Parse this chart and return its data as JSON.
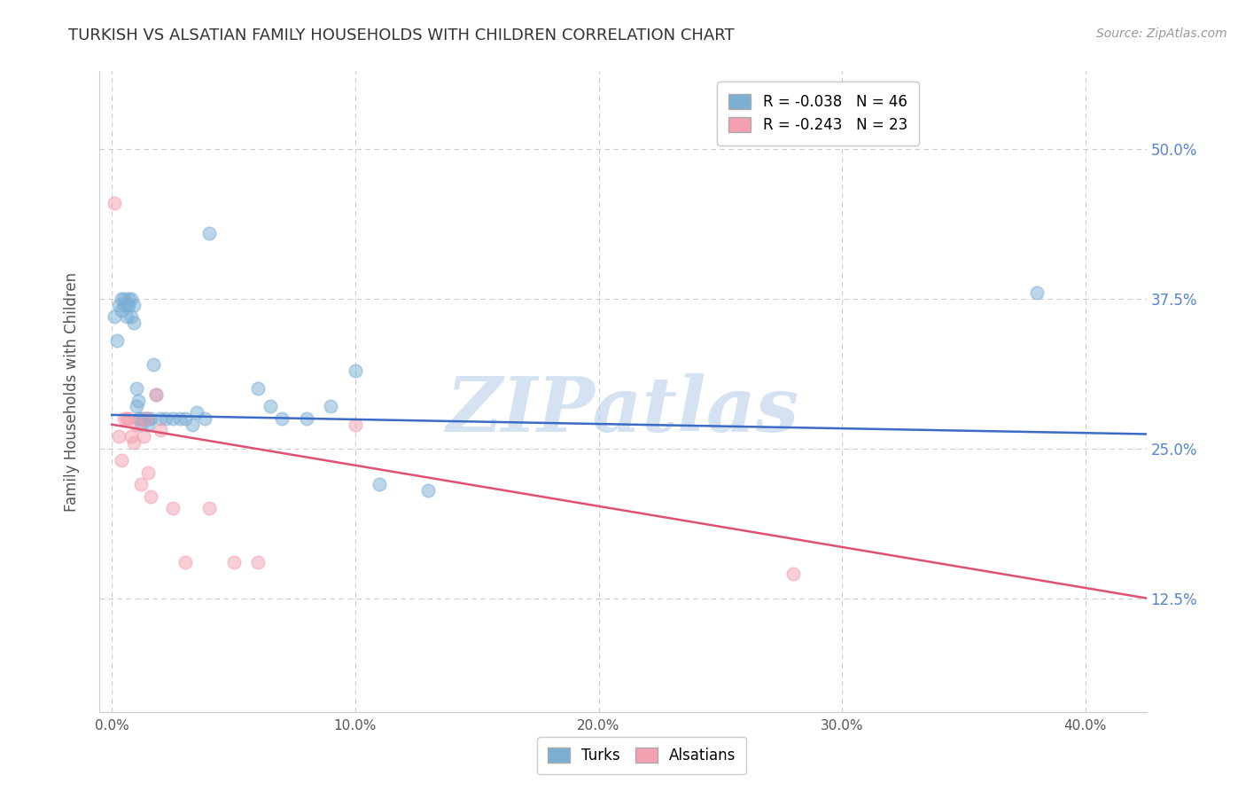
{
  "title": "TURKISH VS ALSATIAN FAMILY HOUSEHOLDS WITH CHILDREN CORRELATION CHART",
  "source": "Source: ZipAtlas.com",
  "ylabel": "Family Households with Children",
  "x_tick_labels": [
    "0.0%",
    "10.0%",
    "20.0%",
    "30.0%",
    "40.0%"
  ],
  "y_tick_labels": [
    "50.0%",
    "37.5%",
    "25.0%",
    "12.5%"
  ],
  "y_tick_values": [
    0.5,
    0.375,
    0.25,
    0.125
  ],
  "x_tick_values": [
    0.0,
    0.1,
    0.2,
    0.3,
    0.4
  ],
  "xlim": [
    -0.005,
    0.425
  ],
  "ylim": [
    0.03,
    0.565
  ],
  "legend_turks": "R = -0.038   N = 46",
  "legend_alsatians": "R = -0.243   N = 23",
  "turks_color": "#7bafd4",
  "alsatians_color": "#f4a0b0",
  "turks_line_color": "#3a6cc6",
  "alsatians_line_color": "#e05070",
  "turks_scatter_x": [
    0.001,
    0.002,
    0.003,
    0.004,
    0.004,
    0.005,
    0.005,
    0.006,
    0.006,
    0.007,
    0.007,
    0.008,
    0.008,
    0.009,
    0.009,
    0.01,
    0.01,
    0.011,
    0.011,
    0.012,
    0.012,
    0.013,
    0.014,
    0.015,
    0.015,
    0.016,
    0.017,
    0.018,
    0.02,
    0.022,
    0.025,
    0.028,
    0.03,
    0.033,
    0.035,
    0.038,
    0.04,
    0.06,
    0.065,
    0.07,
    0.08,
    0.09,
    0.1,
    0.11,
    0.13,
    0.38
  ],
  "turks_scatter_y": [
    0.36,
    0.34,
    0.37,
    0.375,
    0.365,
    0.375,
    0.37,
    0.37,
    0.36,
    0.375,
    0.37,
    0.375,
    0.36,
    0.37,
    0.355,
    0.3,
    0.285,
    0.29,
    0.275,
    0.275,
    0.27,
    0.275,
    0.275,
    0.275,
    0.27,
    0.275,
    0.32,
    0.295,
    0.275,
    0.275,
    0.275,
    0.275,
    0.275,
    0.27,
    0.28,
    0.275,
    0.43,
    0.3,
    0.285,
    0.275,
    0.275,
    0.285,
    0.315,
    0.22,
    0.215,
    0.38
  ],
  "alsatians_scatter_x": [
    0.001,
    0.003,
    0.004,
    0.005,
    0.006,
    0.007,
    0.008,
    0.009,
    0.01,
    0.012,
    0.013,
    0.014,
    0.015,
    0.016,
    0.018,
    0.02,
    0.025,
    0.03,
    0.04,
    0.05,
    0.06,
    0.28,
    0.1
  ],
  "alsatians_scatter_y": [
    0.455,
    0.26,
    0.24,
    0.275,
    0.275,
    0.275,
    0.26,
    0.255,
    0.27,
    0.22,
    0.26,
    0.275,
    0.23,
    0.21,
    0.295,
    0.265,
    0.2,
    0.155,
    0.2,
    0.155,
    0.155,
    0.145,
    0.27
  ],
  "turks_trend_x": [
    0.0,
    0.425
  ],
  "turks_trend_y": [
    0.278,
    0.262
  ],
  "alsatians_trend_x": [
    0.0,
    0.425
  ],
  "alsatians_trend_y": [
    0.27,
    0.125
  ],
  "watermark_text": "ZIPatlas",
  "background_color": "#ffffff",
  "grid_color": "#cccccc",
  "title_color": "#333333",
  "axis_label_color": "#555555",
  "right_tick_color": "#5585c8",
  "marker_size": 110,
  "marker_alpha": 0.5,
  "marker_linewidth": 0.0
}
